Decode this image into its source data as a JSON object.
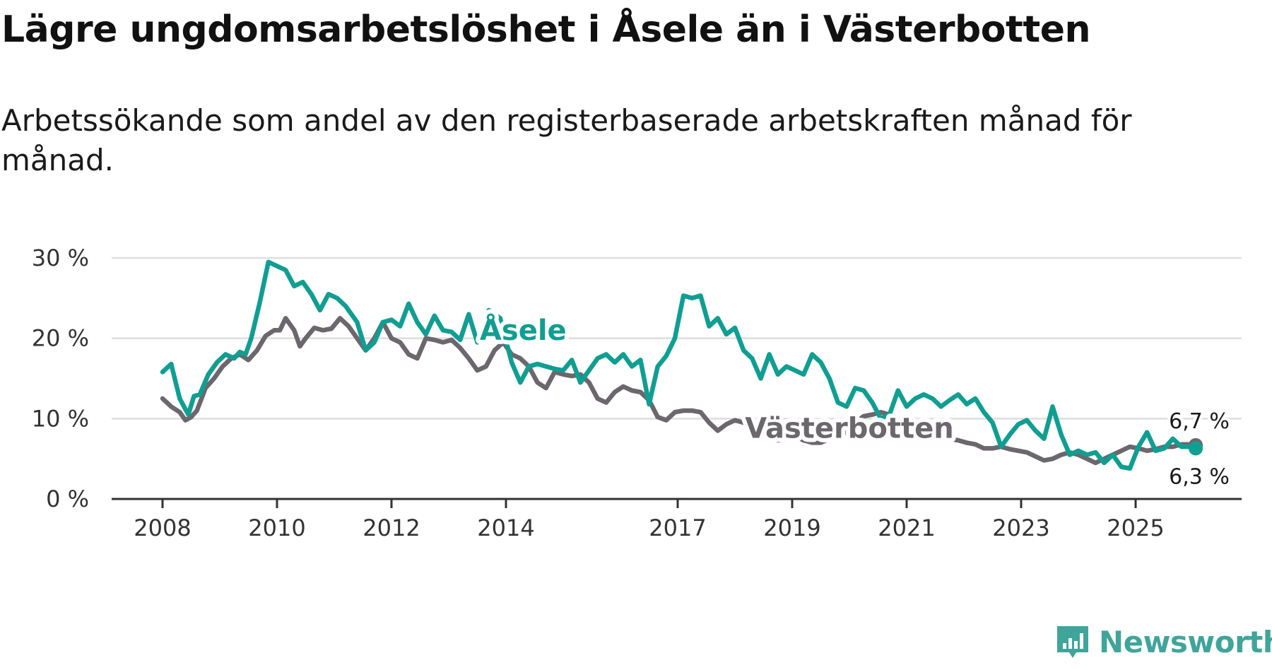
{
  "title": "Lägre ungdomsarbetslöshet i Åsele än i Västerbotten",
  "subtitle": "Arbetssökande som andel av den registerbaserade arbetskraften månad för månad.",
  "brand": "Newsworthy",
  "colors": {
    "asele": "#109e92",
    "vasterbotten": "#6b676c",
    "grid": "#dedede",
    "axis": "#333333",
    "brand": "#3fa59b"
  },
  "chart_data": {
    "type": "line",
    "title": "Lägre ungdomsarbetslöshet i Åsele än i Västerbotten",
    "xlabel": "",
    "ylabel": "",
    "xlim": [
      2008,
      2027
    ],
    "ylim": [
      0,
      30
    ],
    "y_ticks": [
      0,
      10,
      20,
      30
    ],
    "y_tick_labels": [
      "0 %",
      "10 %",
      "20 %",
      "30 %"
    ],
    "x_ticks": [
      2008,
      2010,
      2012,
      2014,
      2017,
      2019,
      2021,
      2023,
      2025
    ],
    "x_tick_labels": [
      "2008",
      "2010",
      "2012",
      "2014",
      "2017",
      "2019",
      "2021",
      "2023",
      "2025"
    ],
    "legend": "inline labels",
    "series": [
      {
        "name": "Åsele",
        "label": "Åsele",
        "color": "#109e92",
        "end_label": "6,3 %",
        "x": [
          2008.0,
          2008.15,
          2008.3,
          2008.45,
          2008.55,
          2008.65,
          2008.8,
          2008.95,
          2009.1,
          2009.25,
          2009.35,
          2009.45,
          2009.55,
          2009.7,
          2009.85,
          2010.0,
          2010.15,
          2010.3,
          2010.45,
          2010.6,
          2010.75,
          2010.9,
          2011.05,
          2011.2,
          2011.4,
          2011.55,
          2011.7,
          2011.85,
          2012.0,
          2012.15,
          2012.3,
          2012.45,
          2012.6,
          2012.75,
          2012.9,
          2013.05,
          2013.2,
          2013.35,
          2013.5,
          2013.7,
          2013.9,
          2014.1,
          2014.25,
          2014.4,
          2014.55,
          2014.7,
          2014.85,
          2015.0,
          2015.15,
          2015.3,
          2015.45,
          2015.6,
          2015.75,
          2015.9,
          2016.05,
          2016.2,
          2016.35,
          2016.5,
          2016.65,
          2016.8,
          2016.95,
          2017.1,
          2017.25,
          2017.4,
          2017.55,
          2017.7,
          2017.85,
          2018.0,
          2018.15,
          2018.3,
          2018.45,
          2018.6,
          2018.75,
          2018.9,
          2019.05,
          2019.2,
          2019.35,
          2019.5,
          2019.65,
          2019.8,
          2019.95,
          2020.1,
          2020.25,
          2020.4,
          2020.55,
          2020.7,
          2020.85,
          2021.0,
          2021.15,
          2021.3,
          2021.45,
          2021.6,
          2021.75,
          2021.9,
          2022.05,
          2022.2,
          2022.35,
          2022.5,
          2022.65,
          2022.8,
          2022.95,
          2023.1,
          2023.25,
          2023.4,
          2023.55,
          2023.7,
          2023.85,
          2024.0,
          2024.15,
          2024.3,
          2024.45,
          2024.6,
          2024.75,
          2024.9,
          2025.05,
          2025.2,
          2025.35,
          2025.5,
          2025.65,
          2025.8,
          2025.95,
          2026.05
        ],
        "values": [
          15.8,
          16.8,
          12.5,
          10.5,
          12.8,
          13.0,
          15.5,
          17.0,
          18.0,
          17.5,
          18.3,
          18.0,
          20.0,
          24.5,
          29.5,
          29.0,
          28.5,
          26.5,
          27.0,
          25.5,
          23.5,
          25.5,
          25.0,
          24.0,
          22.0,
          18.5,
          19.5,
          22.0,
          22.3,
          21.5,
          24.3,
          22.0,
          20.5,
          22.8,
          21.0,
          20.8,
          19.8,
          23.0,
          19.5,
          23.5,
          22.5,
          17.0,
          14.5,
          16.5,
          16.8,
          16.5,
          16.2,
          16.0,
          17.3,
          14.5,
          16.0,
          17.5,
          18.0,
          17.0,
          18.0,
          16.5,
          17.3,
          11.8,
          16.5,
          17.8,
          20.0,
          25.3,
          25.0,
          25.3,
          21.5,
          22.5,
          20.5,
          21.3,
          18.5,
          17.5,
          15.0,
          18.0,
          15.5,
          16.5,
          16.0,
          15.5,
          18.0,
          17.0,
          15.0,
          12.0,
          11.5,
          13.8,
          13.5,
          12.0,
          10.0,
          10.5,
          13.5,
          11.5,
          12.5,
          13.0,
          12.5,
          11.5,
          12.3,
          13.0,
          11.8,
          12.5,
          10.8,
          9.5,
          6.5,
          8.0,
          9.3,
          9.8,
          8.5,
          7.5,
          11.5,
          8.0,
          5.5,
          6.0,
          5.5,
          5.8,
          4.5,
          5.5,
          4.0,
          3.8,
          6.5,
          8.3,
          6.0,
          6.3,
          7.5,
          6.5,
          6.5,
          6.3
        ]
      },
      {
        "name": "Västerbotten",
        "label": "Västerbotten",
        "color": "#6b676c",
        "end_label": "6,7 %",
        "x": [
          2008.0,
          2008.15,
          2008.3,
          2008.4,
          2008.5,
          2008.6,
          2008.75,
          2008.9,
          2009.05,
          2009.2,
          2009.35,
          2009.5,
          2009.65,
          2009.8,
          2009.95,
          2010.05,
          2010.15,
          2010.3,
          2010.4,
          2010.5,
          2010.65,
          2010.8,
          2010.95,
          2011.1,
          2011.25,
          2011.4,
          2011.55,
          2011.7,
          2011.85,
          2012.0,
          2012.15,
          2012.3,
          2012.45,
          2012.6,
          2012.75,
          2012.9,
          2013.05,
          2013.2,
          2013.35,
          2013.5,
          2013.65,
          2013.8,
          2013.95,
          2014.1,
          2014.25,
          2014.4,
          2014.55,
          2014.7,
          2014.85,
          2015.0,
          2015.15,
          2015.3,
          2015.45,
          2015.6,
          2015.75,
          2015.9,
          2016.05,
          2016.2,
          2016.35,
          2016.5,
          2016.65,
          2016.8,
          2016.95,
          2017.1,
          2017.25,
          2017.4,
          2017.55,
          2017.7,
          2017.85,
          2018.0,
          2018.15,
          2018.3,
          2018.45,
          2018.6,
          2018.75,
          2018.9,
          2019.05,
          2019.2,
          2019.35,
          2019.5,
          2019.65,
          2019.8,
          2019.95,
          2020.1,
          2020.25,
          2020.4,
          2020.55,
          2020.7,
          2020.85,
          2021.0,
          2021.15,
          2021.3,
          2021.45,
          2021.6,
          2021.75,
          2021.9,
          2022.05,
          2022.2,
          2022.35,
          2022.5,
          2022.65,
          2022.8,
          2022.95,
          2023.1,
          2023.25,
          2023.4,
          2023.55,
          2023.7,
          2023.85,
          2024.0,
          2024.15,
          2024.3,
          2024.45,
          2024.6,
          2024.75,
          2024.9,
          2025.05,
          2025.2,
          2025.35,
          2025.5,
          2025.65,
          2025.8,
          2025.95,
          2026.05
        ],
        "values": [
          12.5,
          11.5,
          10.8,
          9.8,
          10.2,
          11.0,
          13.8,
          15.0,
          16.5,
          17.5,
          18.0,
          17.3,
          18.5,
          20.3,
          21.0,
          21.0,
          22.5,
          21.0,
          19.0,
          20.0,
          21.3,
          21.0,
          21.2,
          22.5,
          21.5,
          20.0,
          18.5,
          20.0,
          22.0,
          20.0,
          19.5,
          18.0,
          17.5,
          20.0,
          19.8,
          19.5,
          19.8,
          18.8,
          17.5,
          16.0,
          16.5,
          18.5,
          19.5,
          18.0,
          17.5,
          16.5,
          14.5,
          13.8,
          15.8,
          15.5,
          15.3,
          15.5,
          14.5,
          12.5,
          12.0,
          13.3,
          14.0,
          13.5,
          13.3,
          12.3,
          10.2,
          9.8,
          10.8,
          11.0,
          11.0,
          10.8,
          9.5,
          8.5,
          9.3,
          9.8,
          9.5,
          9.3,
          8.8,
          8.2,
          7.3,
          7.5,
          7.8,
          7.3,
          7.0,
          7.0,
          7.5,
          8.0,
          8.3,
          9.5,
          10.3,
          10.5,
          10.8,
          10.5,
          10.0,
          9.5,
          9.0,
          8.5,
          8.0,
          7.8,
          7.5,
          7.3,
          7.0,
          6.8,
          6.3,
          6.3,
          6.5,
          6.2,
          6.0,
          5.8,
          5.3,
          4.8,
          5.0,
          5.5,
          5.8,
          5.5,
          5.0,
          4.5,
          5.0,
          5.5,
          6.0,
          6.5,
          6.3,
          6.0,
          6.2,
          6.5,
          6.5,
          6.8,
          6.8,
          6.7
        ]
      }
    ]
  }
}
